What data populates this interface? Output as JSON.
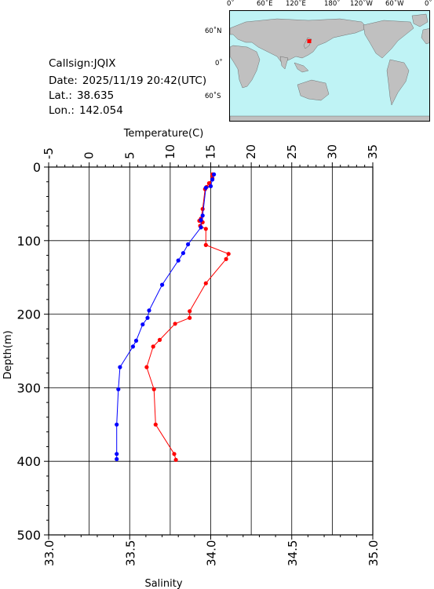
{
  "station": {
    "callsign_label": "Callsign:",
    "callsign": "JQIX",
    "date_label": "Date:",
    "date": "2025/11/19 20:42(UTC)",
    "lat_label": "Lat.:",
    "lat": "38.635",
    "lon_label": "Lon.:",
    "lon": "142.054"
  },
  "map": {
    "lon_ticks": [
      "0˚",
      "60˚E",
      "120˚E",
      "180˚",
      "120˚W",
      "60˚W",
      "0˚"
    ],
    "lat_ticks": [
      "60˚N",
      "0˚",
      "60˚S"
    ],
    "marker": {
      "lat": 38.635,
      "lon": 142.054
    },
    "colors": {
      "ocean": "#bff3f5",
      "land": "#c0c0c0",
      "marker": "#ff0000"
    }
  },
  "chart_data": {
    "type": "line",
    "ylabel": "Depth(m)",
    "ylim": [
      500,
      0
    ],
    "yticks": [
      "0",
      "100",
      "200",
      "300",
      "400",
      "500"
    ],
    "top_axis": {
      "label": "Temperature(C)",
      "lim": [
        -5,
        35
      ],
      "ticks": [
        "-5",
        "0",
        "5",
        "10",
        "15",
        "20",
        "25",
        "30",
        "35"
      ]
    },
    "bottom_axis": {
      "label": "Salinity",
      "lim": [
        33.0,
        35.0
      ],
      "ticks": [
        "33.0",
        "33.5",
        "34.0",
        "34.5",
        "35.0"
      ]
    },
    "grid": true,
    "series": [
      {
        "axis": "top",
        "color": "#ff0000",
        "points": [
          [
            15.2,
            10
          ],
          [
            15.2,
            15
          ],
          [
            14.8,
            22
          ],
          [
            14.5,
            27
          ],
          [
            14.3,
            30
          ],
          [
            14.0,
            57
          ],
          [
            13.8,
            70
          ],
          [
            13.6,
            73
          ],
          [
            14.0,
            75
          ],
          [
            13.7,
            80
          ],
          [
            14.4,
            84
          ],
          [
            14.4,
            106
          ],
          [
            17.2,
            118
          ],
          [
            16.9,
            125
          ],
          [
            14.4,
            158
          ],
          [
            12.4,
            196
          ],
          [
            12.4,
            205
          ],
          [
            10.6,
            213
          ],
          [
            8.7,
            235
          ],
          [
            7.9,
            244
          ],
          [
            7.1,
            272
          ],
          [
            8.0,
            302
          ],
          [
            8.2,
            350
          ],
          [
            10.5,
            390
          ],
          [
            10.7,
            398
          ]
        ]
      },
      {
        "axis": "bottom",
        "color": "#0000ff",
        "points": [
          [
            34.02,
            10
          ],
          [
            34.01,
            17
          ],
          [
            34.0,
            26
          ],
          [
            33.97,
            28
          ],
          [
            33.95,
            66
          ],
          [
            33.94,
            72
          ],
          [
            33.94,
            82
          ],
          [
            33.86,
            105
          ],
          [
            33.83,
            117
          ],
          [
            33.8,
            127
          ],
          [
            33.7,
            160
          ],
          [
            33.62,
            195
          ],
          [
            33.61,
            205
          ],
          [
            33.58,
            214
          ],
          [
            33.54,
            236
          ],
          [
            33.52,
            244
          ],
          [
            33.44,
            272
          ],
          [
            33.43,
            302
          ],
          [
            33.42,
            350
          ],
          [
            33.42,
            390
          ],
          [
            33.42,
            397
          ]
        ]
      }
    ]
  }
}
